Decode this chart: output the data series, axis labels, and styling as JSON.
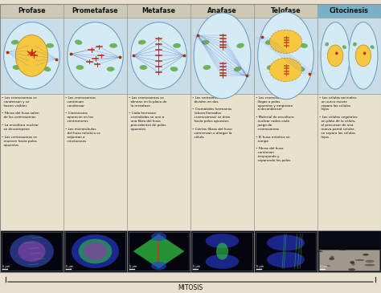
{
  "headers": [
    "Profase",
    "Prometafase",
    "Metafase",
    "Anafase",
    "Telofase",
    "Citocinesis"
  ],
  "header_normal_bg": "#cec9b4",
  "header_last_bg": "#7ab0c8",
  "body_bg": "#e8e2cc",
  "diagram_bg": "#c8dde8",
  "mitosis_label": "MITOSIS",
  "figsize": [
    4.74,
    3.65
  ],
  "dpi": 100,
  "bullet_texts": [
    "• Los cromosomas se\n  condensan y se\n  hacen visibles\n\n• Fibras del huso salen\n  de los centrosomas\n\n• La envoltura nuclear\n  se descompone\n\n• Los centrosomas se\n  mueven hacia polos\n  opuestos",
    "• Los cromosomas\n  continúan\n  condensar\n\n• Cinetocoros\n  aparecen en los\n  centrómeros\n\n• Los microtúbulos\n  del huso mitótico se\n  adjuntan a\n  cinetocoros",
    "• Los cromosomas se\n  alinean en la placa de\n  la metafase\n\n• Cada hermana\n  cromátidas se une a\n  una fibra del huso\n  procedentes de polos\n  opuestos",
    "• Los centrómeros se\n  dividen en dos\n\n• Cromátides hermanas\n  (ahora llamados\n  cromosomas) se tiran\n  hacia polos opuestos\n\n• Ciertas fibras del huso\n  comienzan a alargar la\n  célula",
    "• Los cromosomas\n  llegas a polos\n  opuestos y empiezan\n  a decondenser\n\n• Material de envoltura\n  nuclear rodea cada\n  juego de\n  cromosomas\n\n• El huso mitótico se\n  rompe\n\n• Fibras del huso\n  continúan\n  empujando y\n  separando los polos",
    "• Las células animales:\n  un surco escote\n  separa las células\n  hijas\n\n• Las células vegetales:\n  un plato de la célula,\n  el precursor de una\n  nueva pared celular,\n  se separa las células\n  hijas"
  ]
}
